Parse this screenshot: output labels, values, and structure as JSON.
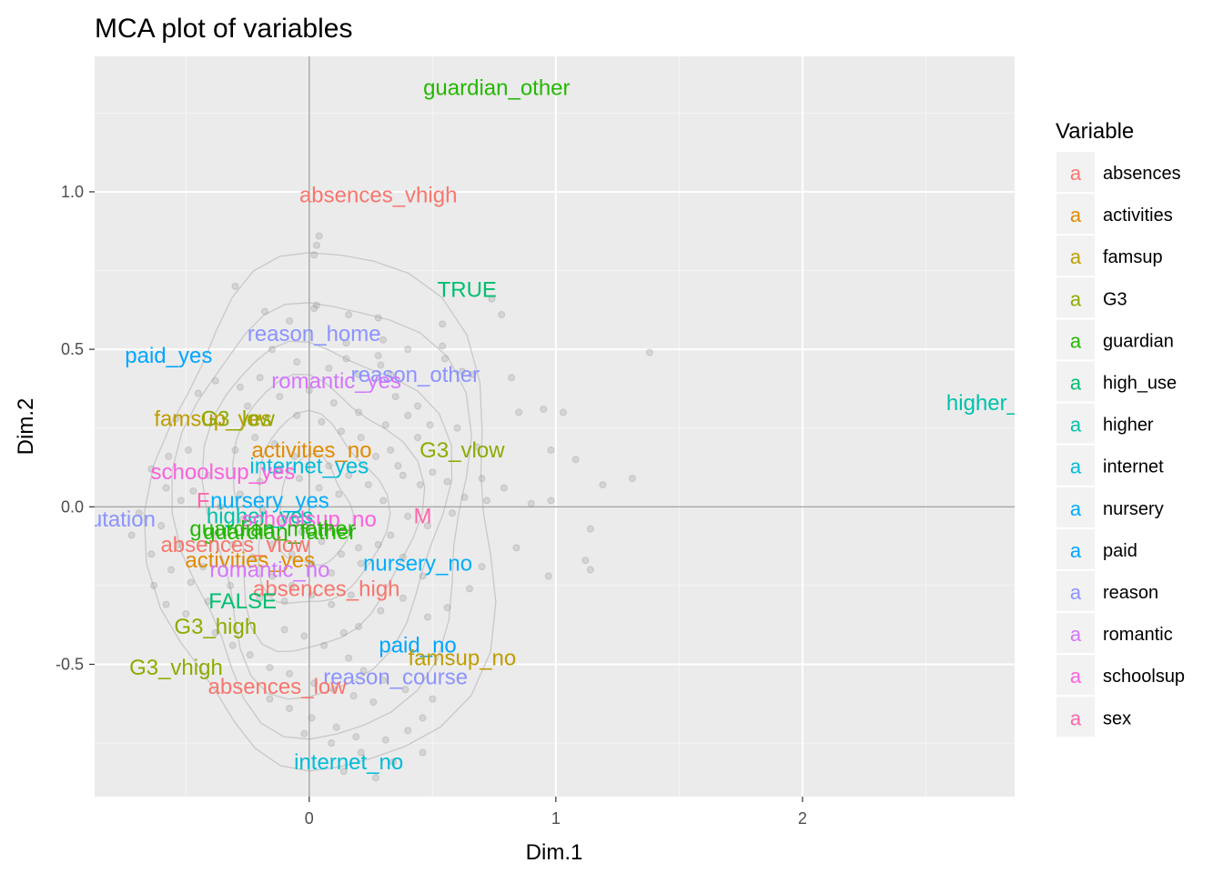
{
  "chart_data": {
    "type": "scatter",
    "title": "MCA plot of variables",
    "xlabel": "Dim.1",
    "ylabel": "Dim.2",
    "xlim": [
      -0.87,
      2.86
    ],
    "ylim": [
      -0.92,
      1.43
    ],
    "x_ticks": [
      0,
      1,
      2
    ],
    "x_tick_labels": [
      "0",
      "1",
      "2"
    ],
    "y_ticks": [
      -0.5,
      0.0,
      0.5,
      1.0
    ],
    "y_tick_labels": [
      "-0.5",
      "0.0",
      "0.5",
      "1.0"
    ],
    "grid": true,
    "reference_lines": {
      "x": 0,
      "y": 0
    },
    "legend": {
      "title": "Variable",
      "placement": "right",
      "key_glyph": "a",
      "entries": [
        {
          "name": "absences",
          "color": "#F8766D"
        },
        {
          "name": "activities",
          "color": "#E18A00"
        },
        {
          "name": "famsup",
          "color": "#BE9C00"
        },
        {
          "name": "G3",
          "color": "#8CAB00"
        },
        {
          "name": "guardian",
          "color": "#24B700"
        },
        {
          "name": "high_use",
          "color": "#00BE70"
        },
        {
          "name": "higher",
          "color": "#00C1AB"
        },
        {
          "name": "internet",
          "color": "#00BBDA"
        },
        {
          "name": "nursery",
          "color": "#00ACFC"
        },
        {
          "name": "paid",
          "color": "#00A5FF"
        },
        {
          "name": "reason",
          "color": "#8B93FF"
        },
        {
          "name": "romantic",
          "color": "#D575FE"
        },
        {
          "name": "schoolsup",
          "color": "#F962DD"
        },
        {
          "name": "sex",
          "color": "#FF65AC"
        }
      ]
    },
    "labels": [
      {
        "text": "guardian_other",
        "variable": "guardian",
        "x": 0.76,
        "y": 1.33
      },
      {
        "text": "absences_vhigh",
        "variable": "absences",
        "x": 0.28,
        "y": 0.99
      },
      {
        "text": "TRUE",
        "variable": "high_use",
        "x": 0.64,
        "y": 0.69
      },
      {
        "text": "reason_home",
        "variable": "reason",
        "x": 0.02,
        "y": 0.55
      },
      {
        "text": "paid_yes",
        "variable": "paid",
        "x": -0.57,
        "y": 0.48
      },
      {
        "text": "reason_other",
        "variable": "reason",
        "x": 0.43,
        "y": 0.42
      },
      {
        "text": "romantic_yes",
        "variable": "romantic",
        "x": 0.11,
        "y": 0.4
      },
      {
        "text": "higher_no",
        "variable": "higher",
        "x": 2.78,
        "y": 0.33
      },
      {
        "text": "famsup_yes",
        "variable": "famsup",
        "x": -0.39,
        "y": 0.28
      },
      {
        "text": "G3_low",
        "variable": "G3",
        "x": -0.29,
        "y": 0.28
      },
      {
        "text": "activities_no",
        "variable": "activities",
        "x": 0.01,
        "y": 0.18
      },
      {
        "text": "G3_vlow",
        "variable": "G3",
        "x": 0.62,
        "y": 0.18
      },
      {
        "text": "internet_yes",
        "variable": "internet",
        "x": 0.0,
        "y": 0.13
      },
      {
        "text": "schoolsup_yes",
        "variable": "schoolsup",
        "x": -0.35,
        "y": 0.11
      },
      {
        "text": "F",
        "variable": "sex",
        "x": -0.43,
        "y": 0.02
      },
      {
        "text": "nursery_yes",
        "variable": "nursery",
        "x": -0.16,
        "y": 0.02
      },
      {
        "text": "higher_yes",
        "variable": "higher",
        "x": -0.2,
        "y": -0.03
      },
      {
        "text": "reason_reputation",
        "variable": "reason",
        "x": -0.98,
        "y": -0.04
      },
      {
        "text": "schoolsup_no",
        "variable": "schoolsup",
        "x": 0.0,
        "y": -0.04
      },
      {
        "text": "M",
        "variable": "sex",
        "x": 0.46,
        "y": -0.03
      },
      {
        "text": "guardian_mother",
        "variable": "guardian",
        "x": -0.15,
        "y": -0.07
      },
      {
        "text": "guardian_father",
        "variable": "guardian",
        "x": -0.12,
        "y": -0.08
      },
      {
        "text": "absences_vlow",
        "variable": "absences",
        "x": -0.3,
        "y": -0.12
      },
      {
        "text": "activities_yes",
        "variable": "activities",
        "x": -0.24,
        "y": -0.17
      },
      {
        "text": "romantic_no",
        "variable": "romantic",
        "x": -0.16,
        "y": -0.2
      },
      {
        "text": "nursery_no",
        "variable": "nursery",
        "x": 0.44,
        "y": -0.18
      },
      {
        "text": "absences_high",
        "variable": "absences",
        "x": 0.07,
        "y": -0.26
      },
      {
        "text": "FALSE",
        "variable": "high_use",
        "x": -0.27,
        "y": -0.3
      },
      {
        "text": "G3_high",
        "variable": "G3",
        "x": -0.38,
        "y": -0.38
      },
      {
        "text": "paid_no",
        "variable": "paid",
        "x": 0.44,
        "y": -0.44
      },
      {
        "text": "famsup_no",
        "variable": "famsup",
        "x": 0.62,
        "y": -0.48
      },
      {
        "text": "G3_vhigh",
        "variable": "G3",
        "x": -0.54,
        "y": -0.51
      },
      {
        "text": "reason_course",
        "variable": "reason",
        "x": 0.35,
        "y": -0.54
      },
      {
        "text": "absences_low",
        "variable": "absences",
        "x": -0.13,
        "y": -0.57
      },
      {
        "text": "internet_no",
        "variable": "internet",
        "x": 0.16,
        "y": -0.81
      }
    ],
    "individuals": {
      "color": "#999999",
      "points": [
        [
          0.04,
          0.86
        ],
        [
          0.03,
          0.83
        ],
        [
          0.02,
          0.8
        ],
        [
          0.03,
          0.64
        ],
        [
          0.02,
          0.63
        ],
        [
          0.16,
          0.61
        ],
        [
          0.28,
          0.6
        ],
        [
          0.74,
          0.66
        ],
        [
          0.78,
          0.61
        ],
        [
          0.54,
          0.58
        ],
        [
          0.3,
          0.53
        ],
        [
          0.15,
          0.52
        ],
        [
          -0.3,
          0.7
        ],
        [
          -0.18,
          0.62
        ],
        [
          -0.08,
          0.59
        ],
        [
          0.15,
          0.47
        ],
        [
          0.28,
          0.48
        ],
        [
          0.4,
          0.5
        ],
        [
          0.54,
          0.51
        ],
        [
          0.55,
          0.47
        ],
        [
          0.29,
          0.45
        ],
        [
          0.62,
          0.43
        ],
        [
          0.66,
          0.42
        ],
        [
          0.33,
          0.42
        ],
        [
          1.38,
          0.49
        ],
        [
          0.82,
          0.41
        ],
        [
          0.85,
          0.3
        ],
        [
          0.95,
          0.31
        ],
        [
          1.03,
          0.3
        ],
        [
          0.98,
          0.18
        ],
        [
          1.08,
          0.15
        ],
        [
          0.68,
          0.19
        ],
        [
          0.6,
          0.25
        ],
        [
          0.49,
          0.26
        ],
        [
          0.4,
          0.29
        ],
        [
          0.31,
          0.26
        ],
        [
          -0.2,
          0.41
        ],
        [
          -0.28,
          0.38
        ],
        [
          -0.38,
          0.4
        ],
        [
          -0.45,
          0.36
        ],
        [
          -0.54,
          0.28
        ],
        [
          -0.49,
          0.18
        ],
        [
          -0.57,
          0.16
        ],
        [
          -0.64,
          0.12
        ],
        [
          -0.58,
          0.06
        ],
        [
          -0.52,
          0.02
        ],
        [
          -0.47,
          0.05
        ],
        [
          -0.41,
          0.1
        ],
        [
          -0.05,
          0.29
        ],
        [
          0.05,
          0.27
        ],
        [
          0.13,
          0.24
        ],
        [
          0.21,
          0.22
        ],
        [
          0.27,
          0.16
        ],
        [
          0.33,
          0.18
        ],
        [
          0.38,
          0.1
        ],
        [
          0.45,
          0.07
        ],
        [
          0.5,
          0.11
        ],
        [
          0.56,
          0.08
        ],
        [
          0.7,
          0.09
        ],
        [
          0.79,
          0.06
        ],
        [
          1.31,
          0.09
        ],
        [
          1.19,
          0.07
        ],
        [
          0.98,
          0.02
        ],
        [
          0.9,
          0.01
        ],
        [
          0.72,
          0.02
        ],
        [
          0.63,
          0.03
        ],
        [
          0.58,
          -0.02
        ],
        [
          0.48,
          -0.06
        ],
        [
          0.4,
          -0.03
        ],
        [
          0.33,
          -0.09
        ],
        [
          0.28,
          -0.12
        ],
        [
          0.2,
          -0.13
        ],
        [
          1.14,
          -0.07
        ],
        [
          1.12,
          -0.17
        ],
        [
          1.14,
          -0.2
        ],
        [
          0.97,
          -0.22
        ],
        [
          0.84,
          -0.13
        ],
        [
          0.7,
          -0.19
        ],
        [
          0.65,
          -0.26
        ],
        [
          0.56,
          -0.32
        ],
        [
          0.48,
          -0.35
        ],
        [
          0.38,
          -0.29
        ],
        [
          0.29,
          -0.33
        ],
        [
          0.2,
          -0.38
        ],
        [
          -0.1,
          -0.3
        ],
        [
          -0.2,
          -0.29
        ],
        [
          -0.32,
          -0.25
        ],
        [
          -0.43,
          -0.19
        ],
        [
          -0.53,
          -0.12
        ],
        [
          -0.6,
          -0.06
        ],
        [
          -0.69,
          -0.02
        ],
        [
          -0.72,
          -0.09
        ],
        [
          -0.64,
          -0.15
        ],
        [
          -0.56,
          -0.2
        ],
        [
          -0.48,
          -0.24
        ],
        [
          -0.41,
          -0.3
        ],
        [
          -0.5,
          -0.34
        ],
        [
          -0.58,
          -0.31
        ],
        [
          -0.63,
          -0.25
        ],
        [
          -0.38,
          -0.4
        ],
        [
          -0.31,
          -0.44
        ],
        [
          -0.24,
          -0.47
        ],
        [
          -0.16,
          -0.51
        ],
        [
          -0.08,
          -0.53
        ],
        [
          0.02,
          -0.56
        ],
        [
          0.1,
          -0.58
        ],
        [
          0.18,
          -0.6
        ],
        [
          0.26,
          -0.62
        ],
        [
          0.14,
          -0.4
        ],
        [
          0.06,
          -0.44
        ],
        [
          -0.02,
          -0.41
        ],
        [
          -0.1,
          -0.39
        ],
        [
          0.16,
          -0.48
        ],
        [
          0.22,
          -0.52
        ],
        [
          0.3,
          -0.55
        ],
        [
          0.39,
          -0.58
        ],
        [
          0.5,
          -0.61
        ],
        [
          0.46,
          -0.67
        ],
        [
          0.4,
          -0.71
        ],
        [
          0.31,
          -0.74
        ],
        [
          0.19,
          -0.73
        ],
        [
          0.11,
          -0.7
        ],
        [
          0.01,
          -0.67
        ],
        [
          -0.08,
          -0.64
        ],
        [
          -0.16,
          -0.61
        ],
        [
          0.21,
          -0.78
        ],
        [
          0.34,
          -0.81
        ],
        [
          0.46,
          -0.78
        ],
        [
          0.09,
          -0.75
        ],
        [
          -0.02,
          -0.72
        ],
        [
          0.14,
          -0.84
        ],
        [
          0.27,
          -0.86
        ],
        [
          -0.3,
          0.18
        ],
        [
          -0.22,
          0.22
        ],
        [
          -0.14,
          0.2
        ],
        [
          -0.06,
          0.16
        ],
        [
          0.08,
          0.13
        ],
        [
          0.16,
          0.1
        ],
        [
          0.24,
          0.07
        ],
        [
          0.12,
          0.04
        ],
        [
          0.04,
          0.06
        ],
        [
          -0.04,
          0.09
        ],
        [
          -0.12,
          0.12
        ],
        [
          -0.2,
          0.08
        ],
        [
          -0.28,
          0.04
        ],
        [
          -0.36,
          0.0
        ],
        [
          -0.27,
          -0.04
        ],
        [
          -0.19,
          -0.01
        ],
        [
          -0.11,
          -0.05
        ],
        [
          -0.03,
          -0.08
        ],
        [
          0.05,
          -0.11
        ],
        [
          0.13,
          -0.15
        ],
        [
          0.21,
          -0.18
        ],
        [
          0.09,
          -0.21
        ],
        [
          0.01,
          -0.18
        ],
        [
          -0.07,
          -0.15
        ],
        [
          -0.15,
          -0.12
        ],
        [
          -0.23,
          -0.16
        ],
        [
          -0.31,
          -0.12
        ],
        [
          -0.15,
          -0.22
        ],
        [
          -0.07,
          -0.25
        ],
        [
          0.01,
          -0.28
        ],
        [
          0.09,
          -0.31
        ],
        [
          0.17,
          -0.28
        ],
        [
          -0.25,
          0.32
        ],
        [
          -0.12,
          0.35
        ],
        [
          0.0,
          0.37
        ],
        [
          0.1,
          0.33
        ],
        [
          0.2,
          0.3
        ],
        [
          0.08,
          0.44
        ],
        [
          -0.05,
          0.46
        ],
        [
          -0.15,
          0.5
        ],
        [
          0.2,
          0.42
        ],
        [
          0.35,
          0.35
        ],
        [
          0.44,
          0.32
        ],
        [
          0.44,
          0.22
        ],
        [
          0.36,
          0.13
        ],
        [
          0.3,
          0.02
        ],
        [
          0.38,
          -0.16
        ],
        [
          0.46,
          -0.22
        ]
      ]
    }
  }
}
